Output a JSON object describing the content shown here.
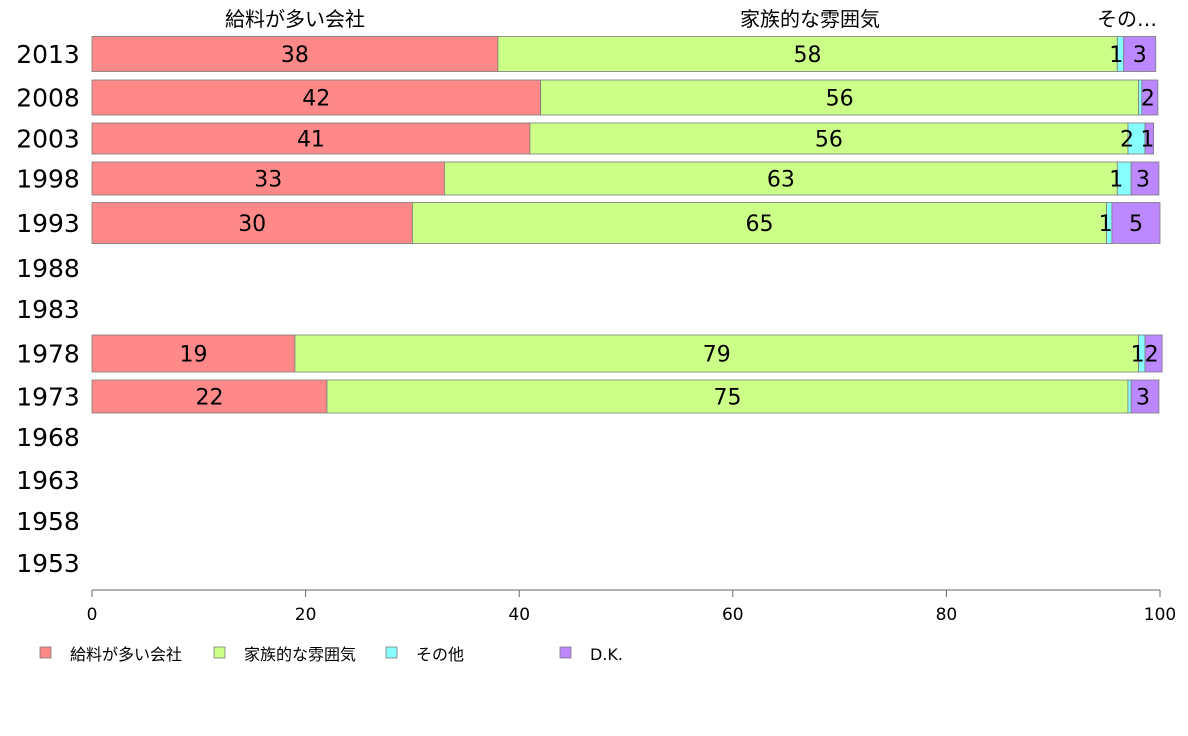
{
  "chart_data": {
    "type": "bar",
    "orientation": "horizontal",
    "stacked": true,
    "categories": [
      "2013",
      "2008",
      "2003",
      "1998",
      "1993",
      "1988",
      "1983",
      "1978",
      "1973",
      "1968",
      "1963",
      "1958",
      "1953"
    ],
    "series": [
      {
        "name": "給料が多い会社",
        "color": "#ff8888",
        "values": [
          38,
          42,
          41,
          33,
          30,
          null,
          null,
          19,
          22,
          null,
          null,
          null,
          null
        ],
        "labels": [
          "38",
          "42",
          "41",
          "33",
          "30",
          "",
          "",
          "19",
          "22",
          "",
          "",
          "",
          ""
        ]
      },
      {
        "name": "家族的な雰囲気",
        "color": "#ccff88",
        "values": [
          58,
          56,
          56,
          63,
          65,
          null,
          null,
          79,
          75,
          null,
          null,
          null,
          null
        ],
        "labels": [
          "58",
          "56",
          "56",
          "63",
          "65",
          "",
          "",
          "79",
          "75",
          "",
          "",
          "",
          ""
        ]
      },
      {
        "name": "その他",
        "color": "#88ffff",
        "values": [
          0.6,
          0.3,
          1.6,
          1.3,
          0.5,
          null,
          null,
          0.6,
          0.3,
          null,
          null,
          null,
          null
        ],
        "labels": [
          "1",
          "",
          "2",
          "1",
          "1",
          "",
          "",
          "1",
          "",
          "",
          "",
          "",
          ""
        ]
      },
      {
        "name": "D.K.",
        "color": "#bb88ff",
        "values": [
          3,
          1.5,
          0.8,
          2.6,
          4.5,
          null,
          null,
          1.6,
          2.6,
          null,
          null,
          null,
          null
        ],
        "labels": [
          "3",
          "2",
          "1",
          "3",
          "5",
          "",
          "",
          "2",
          "3",
          "",
          "",
          "",
          ""
        ]
      }
    ],
    "column_headers": [
      "給料が多い会社",
      "家族的な雰囲気",
      "その…"
    ],
    "xlim": [
      0,
      100
    ],
    "xticks": [
      "0",
      "20",
      "40",
      "60",
      "80",
      "100"
    ],
    "grid": false,
    "legend_position": "bottom"
  }
}
